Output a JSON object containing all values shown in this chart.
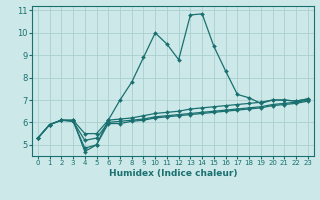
{
  "xlabel": "Humidex (Indice chaleur)",
  "xlim": [
    -0.5,
    23.5
  ],
  "ylim": [
    4.5,
    11.2
  ],
  "yticks": [
    5,
    6,
    7,
    8,
    9,
    10,
    11
  ],
  "xticks": [
    0,
    1,
    2,
    3,
    4,
    5,
    6,
    7,
    8,
    9,
    10,
    11,
    12,
    13,
    14,
    15,
    16,
    17,
    18,
    19,
    20,
    21,
    22,
    23
  ],
  "bg_color": "#cce8e8",
  "grid_color": "#aacfcf",
  "line_color": "#1a7070",
  "lines": [
    [
      5.3,
      5.9,
      6.1,
      6.1,
      4.7,
      5.0,
      6.1,
      7.0,
      7.8,
      8.9,
      10.0,
      9.5,
      8.8,
      10.8,
      10.85,
      9.4,
      8.3,
      7.25,
      7.1,
      6.85,
      7.0,
      7.0,
      6.95,
      7.05
    ],
    [
      5.3,
      5.9,
      6.1,
      6.1,
      5.5,
      5.5,
      6.1,
      6.15,
      6.2,
      6.3,
      6.4,
      6.45,
      6.5,
      6.6,
      6.65,
      6.7,
      6.75,
      6.8,
      6.85,
      6.9,
      7.0,
      7.0,
      6.95,
      7.05
    ],
    [
      5.3,
      5.9,
      6.1,
      6.05,
      4.85,
      5.0,
      5.95,
      5.95,
      6.05,
      6.1,
      6.2,
      6.25,
      6.3,
      6.35,
      6.4,
      6.45,
      6.5,
      6.55,
      6.6,
      6.65,
      6.75,
      6.8,
      6.85,
      6.95
    ],
    [
      5.3,
      5.9,
      6.1,
      6.05,
      5.2,
      5.3,
      6.0,
      6.05,
      6.1,
      6.15,
      6.25,
      6.3,
      6.35,
      6.4,
      6.45,
      6.5,
      6.55,
      6.6,
      6.65,
      6.7,
      6.8,
      6.85,
      6.9,
      7.0
    ]
  ]
}
